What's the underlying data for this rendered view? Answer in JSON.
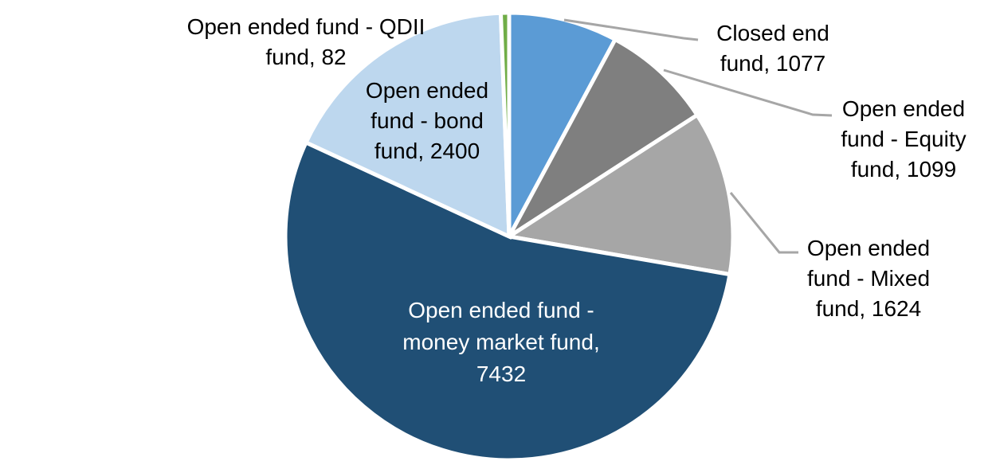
{
  "chart_data": {
    "type": "pie",
    "title": "",
    "total": 13714,
    "start_angle_deg": 0,
    "direction": "clockwise",
    "legend": "none",
    "data_label_style": "category name + value, leader lines for small outer slices",
    "background_color": "#FFFFFF",
    "leader_line_color": "#A6A6A6",
    "slices": [
      {
        "key": "closed-end",
        "label": "Closed end fund",
        "value": 1077,
        "color": "#5B9BD5",
        "label_placement": "outside-with-leader",
        "label_text_color": "#000000",
        "lines": [
          "Closed end",
          "fund, 1077"
        ]
      },
      {
        "key": "equity",
        "label": "Open ended fund - Equity fund",
        "value": 1099,
        "color": "#7F7F7F",
        "label_placement": "outside-with-leader",
        "label_text_color": "#000000",
        "lines": [
          "Open ended",
          "fund - Equity",
          "fund, 1099"
        ]
      },
      {
        "key": "mixed",
        "label": "Open ended fund - Mixed fund",
        "value": 1624,
        "color": "#A6A6A6",
        "label_placement": "outside-with-leader",
        "label_text_color": "#000000",
        "lines": [
          "Open ended",
          "fund - Mixed",
          "fund, 1624"
        ]
      },
      {
        "key": "money-market",
        "label": "Open ended fund - money market fund",
        "value": 7432,
        "color": "#204F75",
        "label_placement": "inside",
        "label_text_color": "#FFFFFF",
        "lines": [
          "Open ended fund -",
          "money market fund,",
          "7432"
        ]
      },
      {
        "key": "bond",
        "label": "Open ended fund - bond fund",
        "value": 2400,
        "color": "#BDD7EE",
        "label_placement": "inside",
        "label_text_color": "#000000",
        "lines": [
          "Open ended",
          "fund - bond",
          "fund, 2400"
        ]
      },
      {
        "key": "qdii",
        "label": "Open ended fund - QDII fund",
        "value": 82,
        "color": "#70AD47",
        "label_placement": "outside",
        "label_text_color": "#000000",
        "lines": [
          "Open ended fund - QDII",
          "fund, 82"
        ]
      }
    ]
  }
}
